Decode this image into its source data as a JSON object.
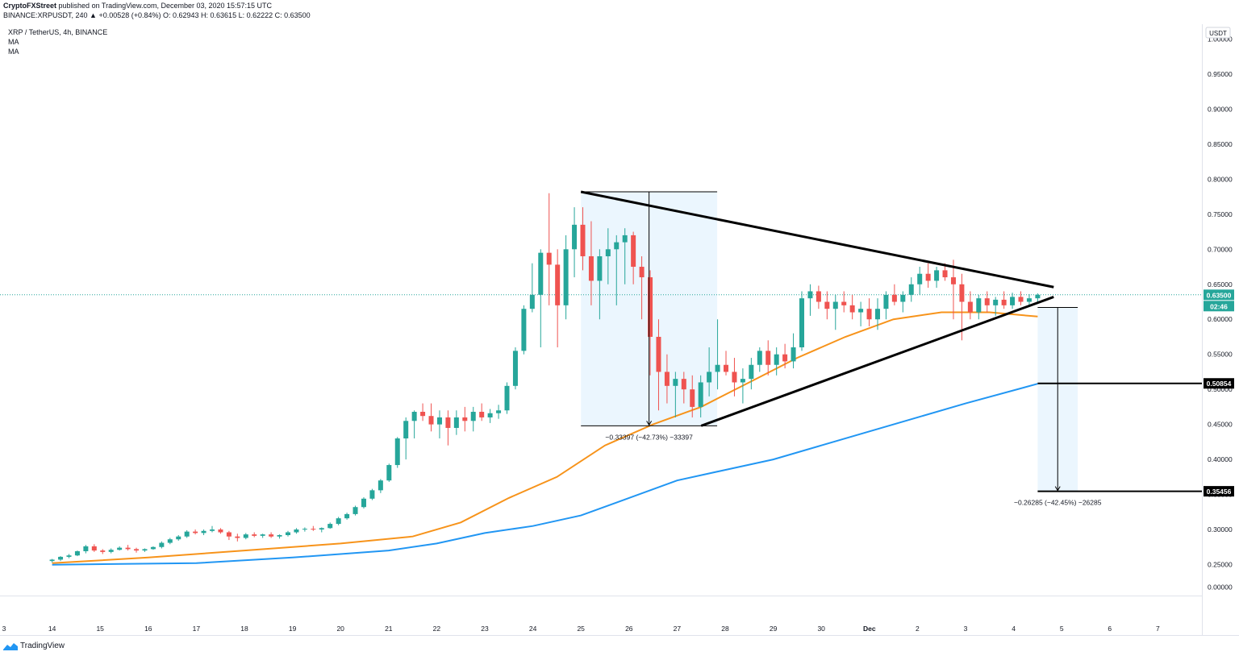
{
  "header": {
    "publisher": "CryptoFXStreet",
    "published_text": "published on TradingView.com, December 03, 2020 15:57:15 UTC",
    "ohlc_line": "BINANCE:XRPUSDT, 240  ▲ +0.00528 (+0.84%) O: 0.62943 H: 0.63615 L: 0.62222 C: 0.63500"
  },
  "legend": {
    "symbol": "XRP / TetherUS, 4h, BINANCE",
    "ma1": "MA",
    "ma2": "MA"
  },
  "brand": {
    "name": "TradingView",
    "logo_icon": "tradingview-logo-icon"
  },
  "axis": {
    "currency": "USDT",
    "y_ticks": [
      "1.00000",
      "0.95000",
      "0.90000",
      "0.85000",
      "0.80000",
      "0.75000",
      "0.70000",
      "0.65000",
      "0.60000",
      "0.55000",
      "0.50000",
      "0.45000",
      "0.40000",
      "0.35000",
      "0.30000",
      "0.25000",
      "0.00000"
    ],
    "x_ticks": [
      "3",
      "14",
      "15",
      "16",
      "17",
      "18",
      "19",
      "20",
      "21",
      "22",
      "23",
      "24",
      "25",
      "26",
      "27",
      "28",
      "29",
      "30",
      "Dec",
      "2",
      "3",
      "4",
      "5",
      "6",
      "7"
    ],
    "last_price_label": "0.63500",
    "countdown_label": "02:46",
    "level_label_1": "0.50854",
    "level_label_2": "0.35456"
  },
  "annotations": {
    "measure_1": "−0.33397 (−42.73%) −33397",
    "measure_2": "−0.26285 (−42.45%) −26285"
  },
  "colors": {
    "up": "#26a69a",
    "down": "#ef5350",
    "ma_fast": "#f7931a",
    "ma_slow": "#2196f3",
    "last_price_bg": "#26a69a"
  },
  "chart_data": {
    "type": "candlestick",
    "title": "XRP / TetherUS, 4h, BINANCE",
    "y_scale": "percentage-compressed",
    "ylim": [
      0.0,
      1.0
    ],
    "x_range": [
      "Nov 13",
      "Dec 7"
    ],
    "last_close": 0.635,
    "horizontal_levels": [
      0.50854,
      0.35456
    ],
    "trendlines": {
      "upper": [
        [
          "Nov 24 00:00",
          0.782
        ],
        [
          "Dec 3 20:00",
          0.646
        ]
      ],
      "lower": [
        [
          "Nov 26 12:00",
          0.448
        ],
        [
          "Dec 3 20:00",
          0.632
        ]
      ]
    },
    "measure_ranges": [
      {
        "from": 0.782,
        "to": 0.448,
        "change": -0.33397,
        "percent": -42.73
      },
      {
        "from": 0.617,
        "to": 0.35456,
        "change": -0.26285,
        "percent": -42.45
      }
    ],
    "ma_fast": [
      [
        "Nov 13 00:00",
        0.252
      ],
      [
        "Nov 15 00:00",
        0.26
      ],
      [
        "Nov 17 00:00",
        0.27
      ],
      [
        "Nov 19 00:00",
        0.28
      ],
      [
        "Nov 20 12:00",
        0.29
      ],
      [
        "Nov 21 12:00",
        0.31
      ],
      [
        "Nov 22 12:00",
        0.345
      ],
      [
        "Nov 23 12:00",
        0.375
      ],
      [
        "Nov 24 12:00",
        0.42
      ],
      [
        "Nov 25 12:00",
        0.45
      ],
      [
        "Nov 26 12:00",
        0.475
      ],
      [
        "Nov 27 12:00",
        0.51
      ],
      [
        "Nov 28 12:00",
        0.545
      ],
      [
        "Nov 29 12:00",
        0.575
      ],
      [
        "Nov 30 12:00",
        0.6
      ],
      [
        "Dec 1 12:00",
        0.61
      ],
      [
        "Dec 2 12:00",
        0.61
      ],
      [
        "Dec 3 12:00",
        0.604
      ]
    ],
    "ma_slow": [
      [
        "Nov 13 00:00",
        0.248
      ],
      [
        "Nov 16 00:00",
        0.252
      ],
      [
        "Nov 18 00:00",
        0.26
      ],
      [
        "Nov 20 00:00",
        0.27
      ],
      [
        "Nov 21 00:00",
        0.28
      ],
      [
        "Nov 22 00:00",
        0.295
      ],
      [
        "Nov 23 00:00",
        0.305
      ],
      [
        "Nov 24 00:00",
        0.32
      ],
      [
        "Nov 25 00:00",
        0.345
      ],
      [
        "Nov 26 00:00",
        0.37
      ],
      [
        "Nov 27 00:00",
        0.385
      ],
      [
        "Nov 28 00:00",
        0.4
      ],
      [
        "Nov 29 00:00",
        0.42
      ],
      [
        "Nov 30 00:00",
        0.44
      ],
      [
        "Dec 1 00:00",
        0.46
      ],
      [
        "Dec 2 00:00",
        0.48
      ],
      [
        "Dec 3 12:00",
        0.508
      ]
    ],
    "candles_ohlc": [
      [
        0.255,
        0.258,
        0.253,
        0.257
      ],
      [
        0.257,
        0.262,
        0.255,
        0.261
      ],
      [
        0.261,
        0.265,
        0.259,
        0.263
      ],
      [
        0.263,
        0.27,
        0.262,
        0.269
      ],
      [
        0.269,
        0.278,
        0.266,
        0.276
      ],
      [
        0.276,
        0.279,
        0.268,
        0.27
      ],
      [
        0.27,
        0.272,
        0.265,
        0.268
      ],
      [
        0.268,
        0.273,
        0.266,
        0.271
      ],
      [
        0.271,
        0.276,
        0.27,
        0.274
      ],
      [
        0.274,
        0.278,
        0.27,
        0.272
      ],
      [
        0.272,
        0.274,
        0.267,
        0.27
      ],
      [
        0.27,
        0.273,
        0.268,
        0.272
      ],
      [
        0.272,
        0.276,
        0.271,
        0.275
      ],
      [
        0.275,
        0.283,
        0.273,
        0.281
      ],
      [
        0.281,
        0.288,
        0.279,
        0.286
      ],
      [
        0.286,
        0.292,
        0.284,
        0.29
      ],
      [
        0.29,
        0.299,
        0.288,
        0.297
      ],
      [
        0.297,
        0.3,
        0.293,
        0.295
      ],
      [
        0.295,
        0.3,
        0.292,
        0.298
      ],
      [
        0.298,
        0.305,
        0.296,
        0.3
      ],
      [
        0.3,
        0.302,
        0.294,
        0.296
      ],
      [
        0.296,
        0.298,
        0.285,
        0.29
      ],
      [
        0.29,
        0.294,
        0.283,
        0.288
      ],
      [
        0.288,
        0.295,
        0.286,
        0.293
      ],
      [
        0.293,
        0.296,
        0.289,
        0.291
      ],
      [
        0.291,
        0.294,
        0.288,
        0.293
      ],
      [
        0.293,
        0.296,
        0.288,
        0.29
      ],
      [
        0.29,
        0.293,
        0.287,
        0.292
      ],
      [
        0.292,
        0.298,
        0.29,
        0.296
      ],
      [
        0.296,
        0.302,
        0.294,
        0.3
      ],
      [
        0.3,
        0.303,
        0.297,
        0.301
      ],
      [
        0.301,
        0.305,
        0.298,
        0.3
      ],
      [
        0.3,
        0.303,
        0.296,
        0.302
      ],
      [
        0.302,
        0.31,
        0.301,
        0.308
      ],
      [
        0.308,
        0.318,
        0.306,
        0.316
      ],
      [
        0.316,
        0.324,
        0.314,
        0.322
      ],
      [
        0.322,
        0.334,
        0.32,
        0.332
      ],
      [
        0.332,
        0.346,
        0.33,
        0.344
      ],
      [
        0.344,
        0.358,
        0.342,
        0.356
      ],
      [
        0.356,
        0.372,
        0.352,
        0.37
      ],
      [
        0.37,
        0.394,
        0.368,
        0.392
      ],
      [
        0.392,
        0.432,
        0.388,
        0.43
      ],
      [
        0.43,
        0.46,
        0.4,
        0.455
      ],
      [
        0.455,
        0.47,
        0.43,
        0.468
      ],
      [
        0.468,
        0.48,
        0.455,
        0.462
      ],
      [
        0.462,
        0.48,
        0.44,
        0.45
      ],
      [
        0.45,
        0.47,
        0.43,
        0.46
      ],
      [
        0.46,
        0.47,
        0.42,
        0.445
      ],
      [
        0.445,
        0.47,
        0.435,
        0.46
      ],
      [
        0.46,
        0.475,
        0.44,
        0.455
      ],
      [
        0.455,
        0.475,
        0.44,
        0.468
      ],
      [
        0.468,
        0.48,
        0.455,
        0.46
      ],
      [
        0.46,
        0.472,
        0.452,
        0.466
      ],
      [
        0.466,
        0.478,
        0.458,
        0.47
      ],
      [
        0.47,
        0.51,
        0.465,
        0.505
      ],
      [
        0.505,
        0.56,
        0.5,
        0.555
      ],
      [
        0.555,
        0.62,
        0.55,
        0.615
      ],
      [
        0.615,
        0.68,
        0.61,
        0.635
      ],
      [
        0.635,
        0.7,
        0.56,
        0.695
      ],
      [
        0.695,
        0.78,
        0.62,
        0.678
      ],
      [
        0.678,
        0.7,
        0.56,
        0.62
      ],
      [
        0.62,
        0.72,
        0.6,
        0.7
      ],
      [
        0.7,
        0.76,
        0.66,
        0.735
      ],
      [
        0.735,
        0.76,
        0.67,
        0.69
      ],
      [
        0.69,
        0.74,
        0.62,
        0.655
      ],
      [
        0.655,
        0.7,
        0.6,
        0.69
      ],
      [
        0.69,
        0.73,
        0.65,
        0.7
      ],
      [
        0.7,
        0.72,
        0.62,
        0.71
      ],
      [
        0.71,
        0.73,
        0.65,
        0.72
      ],
      [
        0.72,
        0.725,
        0.65,
        0.675
      ],
      [
        0.675,
        0.69,
        0.6,
        0.66
      ],
      [
        0.66,
        0.67,
        0.52,
        0.575
      ],
      [
        0.575,
        0.6,
        0.47,
        0.525
      ],
      [
        0.525,
        0.55,
        0.48,
        0.505
      ],
      [
        0.505,
        0.525,
        0.46,
        0.515
      ],
      [
        0.515,
        0.525,
        0.48,
        0.5
      ],
      [
        0.5,
        0.52,
        0.46,
        0.475
      ],
      [
        0.475,
        0.52,
        0.46,
        0.51
      ],
      [
        0.51,
        0.56,
        0.49,
        0.525
      ],
      [
        0.525,
        0.6,
        0.5,
        0.535
      ],
      [
        0.535,
        0.555,
        0.52,
        0.525
      ],
      [
        0.525,
        0.545,
        0.49,
        0.51
      ],
      [
        0.51,
        0.53,
        0.48,
        0.515
      ],
      [
        0.515,
        0.545,
        0.5,
        0.535
      ],
      [
        0.535,
        0.56,
        0.525,
        0.555
      ],
      [
        0.555,
        0.57,
        0.52,
        0.535
      ],
      [
        0.535,
        0.56,
        0.52,
        0.55
      ],
      [
        0.55,
        0.565,
        0.53,
        0.54
      ],
      [
        0.54,
        0.58,
        0.53,
        0.56
      ],
      [
        0.56,
        0.64,
        0.555,
        0.63
      ],
      [
        0.63,
        0.65,
        0.605,
        0.64
      ],
      [
        0.64,
        0.648,
        0.615,
        0.625
      ],
      [
        0.625,
        0.64,
        0.6,
        0.615
      ],
      [
        0.615,
        0.635,
        0.585,
        0.625
      ],
      [
        0.625,
        0.64,
        0.61,
        0.62
      ],
      [
        0.62,
        0.635,
        0.6,
        0.61
      ],
      [
        0.61,
        0.625,
        0.59,
        0.615
      ],
      [
        0.615,
        0.63,
        0.59,
        0.6
      ],
      [
        0.6,
        0.63,
        0.585,
        0.615
      ],
      [
        0.615,
        0.64,
        0.6,
        0.635
      ],
      [
        0.635,
        0.65,
        0.62,
        0.625
      ],
      [
        0.625,
        0.64,
        0.61,
        0.635
      ],
      [
        0.635,
        0.66,
        0.625,
        0.65
      ],
      [
        0.65,
        0.675,
        0.635,
        0.665
      ],
      [
        0.665,
        0.68,
        0.645,
        0.655
      ],
      [
        0.655,
        0.675,
        0.645,
        0.67
      ],
      [
        0.67,
        0.68,
        0.655,
        0.66
      ],
      [
        0.66,
        0.685,
        0.6,
        0.65
      ],
      [
        0.65,
        0.665,
        0.57,
        0.625
      ],
      [
        0.625,
        0.64,
        0.6,
        0.61
      ],
      [
        0.61,
        0.635,
        0.6,
        0.63
      ],
      [
        0.63,
        0.64,
        0.61,
        0.62
      ],
      [
        0.62,
        0.632,
        0.605,
        0.628
      ],
      [
        0.628,
        0.64,
        0.615,
        0.62
      ],
      [
        0.62,
        0.638,
        0.615,
        0.632
      ],
      [
        0.632,
        0.64,
        0.62,
        0.625
      ],
      [
        0.625,
        0.636,
        0.62,
        0.63
      ],
      [
        0.63,
        0.637,
        0.622,
        0.635
      ]
    ]
  }
}
